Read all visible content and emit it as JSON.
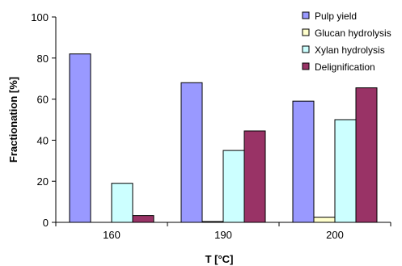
{
  "chart_data": {
    "type": "bar",
    "categories": [
      "160",
      "190",
      "200"
    ],
    "series": [
      {
        "name": "Pulp yield",
        "values": [
          82,
          68,
          59
        ],
        "color": "#9999ff"
      },
      {
        "name": "Glucan hydrolysis",
        "values": [
          0,
          0.4,
          2.5
        ],
        "color": "#ffffcc"
      },
      {
        "name": "Xylan hydrolysis",
        "values": [
          19,
          35,
          50
        ],
        "color": "#ccffff"
      },
      {
        "name": "Delignification",
        "values": [
          3.3,
          44.5,
          65.5
        ],
        "color": "#993366"
      }
    ],
    "xlabel": "T [°C]",
    "ylabel": "Fractionation [%]",
    "ylim": [
      0,
      100
    ],
    "yticks": [
      "0",
      "20",
      "40",
      "60",
      "80",
      "100"
    ],
    "grid": false,
    "legend_position": "top-right"
  }
}
